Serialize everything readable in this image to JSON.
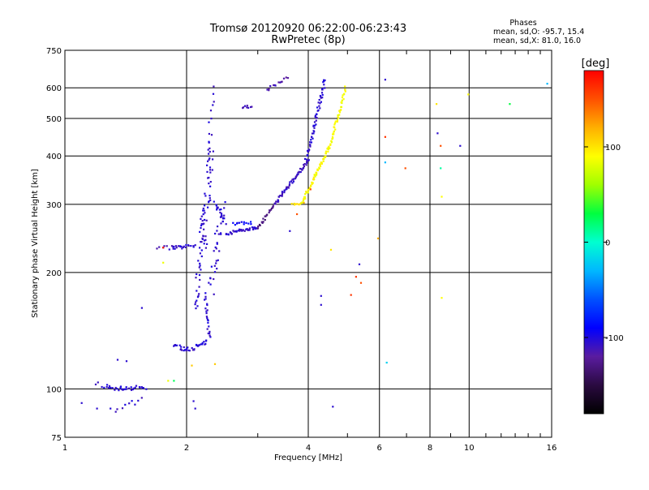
{
  "chart_data": {
    "type": "scatter",
    "title": "Tromsø 20120920 06:22:00-06:23:43",
    "subtitle": "RwPretec (8p)",
    "xlabel": "Frequency [MHz]",
    "ylabel": "Stationary phase Virtual Height [km]",
    "x_scale": "log",
    "y_scale": "log",
    "xlim": [
      1,
      16
    ],
    "ylim": [
      75,
      750
    ],
    "x_ticks": [
      1,
      2,
      4,
      6,
      8,
      10,
      16
    ],
    "y_ticks": [
      75,
      100,
      200,
      300,
      400,
      500,
      600,
      750
    ],
    "grid": true,
    "stats_heading": "Phases",
    "stats_o": "mean, sd,O: -95.7, 15.4",
    "stats_x": "mean, sd,X:  81.0, 16.0",
    "colorbar": {
      "label": "[deg]",
      "range": [
        -180,
        180
      ],
      "ticks": [
        -100,
        0,
        100
      ],
      "colors": [
        "#000000",
        "#2a0a40",
        "#5a1ca0",
        "#0000ff",
        "#0050ff",
        "#00b8ff",
        "#00ffd0",
        "#00ff40",
        "#a0ff00",
        "#ffff00",
        "#ffb000",
        "#ff5000",
        "#ff0000"
      ]
    },
    "segments": [
      {
        "x0": 1.28,
        "x1": 1.58,
        "y0": 100,
        "y1": 101,
        "n": 28,
        "phase": -105,
        "jit": 0.012
      },
      {
        "x0": 1.2,
        "x1": 1.28,
        "y0": 103,
        "y1": 101,
        "n": 6,
        "phase": -105,
        "jit": 0.012
      },
      {
        "x0": 1.7,
        "x1": 1.86,
        "y0": 232,
        "y1": 232,
        "n": 8,
        "phase": -110,
        "jit": 0.01
      },
      {
        "x0": 1.85,
        "x1": 1.95,
        "y0": 232,
        "y1": 232,
        "n": 10,
        "phase": -105,
        "jit": 0.01
      },
      {
        "x0": 1.95,
        "x1": 2.1,
        "y0": 232,
        "y1": 235,
        "n": 10,
        "phase": -105,
        "jit": 0.01
      },
      {
        "x0": 1.86,
        "x1": 2.0,
        "y0": 130,
        "y1": 126,
        "n": 14,
        "phase": -105,
        "jit": 0.01
      },
      {
        "x0": 2.0,
        "x1": 2.25,
        "y0": 126,
        "y1": 132,
        "n": 22,
        "phase": -105,
        "jit": 0.012
      },
      {
        "x0": 2.1,
        "x1": 2.2,
        "y0": 160,
        "y1": 290,
        "n": 36,
        "phase": -105,
        "jit": 0.02
      },
      {
        "x0": 2.2,
        "x1": 2.3,
        "y0": 230,
        "y1": 430,
        "n": 44,
        "phase": -105,
        "jit": 0.03
      },
      {
        "x0": 2.25,
        "x1": 2.32,
        "y0": 400,
        "y1": 600,
        "n": 12,
        "phase": -105,
        "jit": 0.02
      },
      {
        "x0": 2.22,
        "x1": 2.28,
        "y0": 175,
        "y1": 135,
        "n": 22,
        "phase": -105,
        "jit": 0.01
      },
      {
        "x0": 2.3,
        "x1": 2.45,
        "y0": 180,
        "y1": 300,
        "n": 32,
        "phase": -105,
        "jit": 0.025
      },
      {
        "x0": 2.35,
        "x1": 2.5,
        "y0": 300,
        "y1": 270,
        "n": 20,
        "phase": -105,
        "jit": 0.015
      },
      {
        "x0": 2.5,
        "x1": 3.0,
        "y0": 252,
        "y1": 262,
        "n": 40,
        "phase": -105,
        "jit": 0.008
      },
      {
        "x0": 2.6,
        "x1": 2.9,
        "y0": 268,
        "y1": 268,
        "n": 12,
        "phase": -90,
        "jit": 0.008
      },
      {
        "x0": 3.0,
        "x1": 3.3,
        "y0": 262,
        "y1": 300,
        "n": 22,
        "phase": -130,
        "jit": 0.008
      },
      {
        "x0": 3.3,
        "x1": 4.0,
        "y0": 300,
        "y1": 390,
        "n": 60,
        "phase": -110,
        "jit": 0.008
      },
      {
        "x0": 3.95,
        "x1": 4.4,
        "y0": 390,
        "y1": 630,
        "n": 60,
        "phase": -105,
        "jit": 0.01
      },
      {
        "x0": 3.15,
        "x1": 3.55,
        "y0": 590,
        "y1": 640,
        "n": 14,
        "phase": -115,
        "jit": 0.008
      },
      {
        "x0": 2.75,
        "x1": 2.9,
        "y0": 535,
        "y1": 540,
        "n": 8,
        "phase": -110,
        "jit": 0.01
      },
      {
        "x0": 3.65,
        "x1": 3.85,
        "y0": 300,
        "y1": 302,
        "n": 8,
        "phase": 100,
        "jit": 0.006
      },
      {
        "x0": 3.85,
        "x1": 4.5,
        "y0": 302,
        "y1": 420,
        "n": 60,
        "phase": 90,
        "jit": 0.008
      },
      {
        "x0": 4.5,
        "x1": 4.95,
        "y0": 420,
        "y1": 600,
        "n": 45,
        "phase": 88,
        "jit": 0.008
      },
      {
        "x0": 1.3,
        "x1": 1.55,
        "y0": 88,
        "y1": 94,
        "n": 10,
        "phase": -105,
        "jit": 0.015
      }
    ],
    "scatter_points": [
      {
        "x": 1.1,
        "y": 92,
        "phase": -105
      },
      {
        "x": 1.2,
        "y": 89,
        "phase": -105
      },
      {
        "x": 1.35,
        "y": 119,
        "phase": -105
      },
      {
        "x": 1.42,
        "y": 118,
        "phase": -105
      },
      {
        "x": 1.55,
        "y": 162,
        "phase": -105
      },
      {
        "x": 1.75,
        "y": 212,
        "phase": 85
      },
      {
        "x": 1.8,
        "y": 105,
        "phase": 85
      },
      {
        "x": 1.86,
        "y": 105,
        "phase": 25
      },
      {
        "x": 1.75,
        "y": 232,
        "phase": 170
      },
      {
        "x": 2.08,
        "y": 93,
        "phase": -105
      },
      {
        "x": 2.1,
        "y": 89,
        "phase": -105
      },
      {
        "x": 2.06,
        "y": 115,
        "phase": 110
      },
      {
        "x": 2.35,
        "y": 116,
        "phase": 110
      },
      {
        "x": 3.6,
        "y": 256,
        "phase": -105
      },
      {
        "x": 3.75,
        "y": 283,
        "phase": 150
      },
      {
        "x": 3.9,
        "y": 303,
        "phase": 120
      },
      {
        "x": 4.05,
        "y": 328,
        "phase": 150
      },
      {
        "x": 4.3,
        "y": 174,
        "phase": -105
      },
      {
        "x": 4.3,
        "y": 165,
        "phase": -105
      },
      {
        "x": 4.55,
        "y": 229,
        "phase": 100
      },
      {
        "x": 4.6,
        "y": 90,
        "phase": -105
      },
      {
        "x": 5.1,
        "y": 175,
        "phase": 160
      },
      {
        "x": 5.25,
        "y": 195,
        "phase": 160
      },
      {
        "x": 5.35,
        "y": 210,
        "phase": -105
      },
      {
        "x": 5.4,
        "y": 188,
        "phase": 150
      },
      {
        "x": 5.95,
        "y": 245,
        "phase": 120
      },
      {
        "x": 6.2,
        "y": 630,
        "phase": -105
      },
      {
        "x": 6.2,
        "y": 448,
        "phase": 160
      },
      {
        "x": 6.2,
        "y": 385,
        "phase": -30
      },
      {
        "x": 6.25,
        "y": 117,
        "phase": -20
      },
      {
        "x": 6.95,
        "y": 372,
        "phase": 150
      },
      {
        "x": 8.3,
        "y": 545,
        "phase": 100
      },
      {
        "x": 8.35,
        "y": 458,
        "phase": -105
      },
      {
        "x": 8.5,
        "y": 425,
        "phase": 150
      },
      {
        "x": 8.5,
        "y": 372,
        "phase": 10
      },
      {
        "x": 8.55,
        "y": 314,
        "phase": 90
      },
      {
        "x": 8.55,
        "y": 172,
        "phase": 90
      },
      {
        "x": 9.5,
        "y": 425,
        "phase": -105
      },
      {
        "x": 9.95,
        "y": 577,
        "phase": 90
      },
      {
        "x": 12.6,
        "y": 545,
        "phase": 30
      },
      {
        "x": 15.6,
        "y": 615,
        "phase": -30
      }
    ]
  }
}
